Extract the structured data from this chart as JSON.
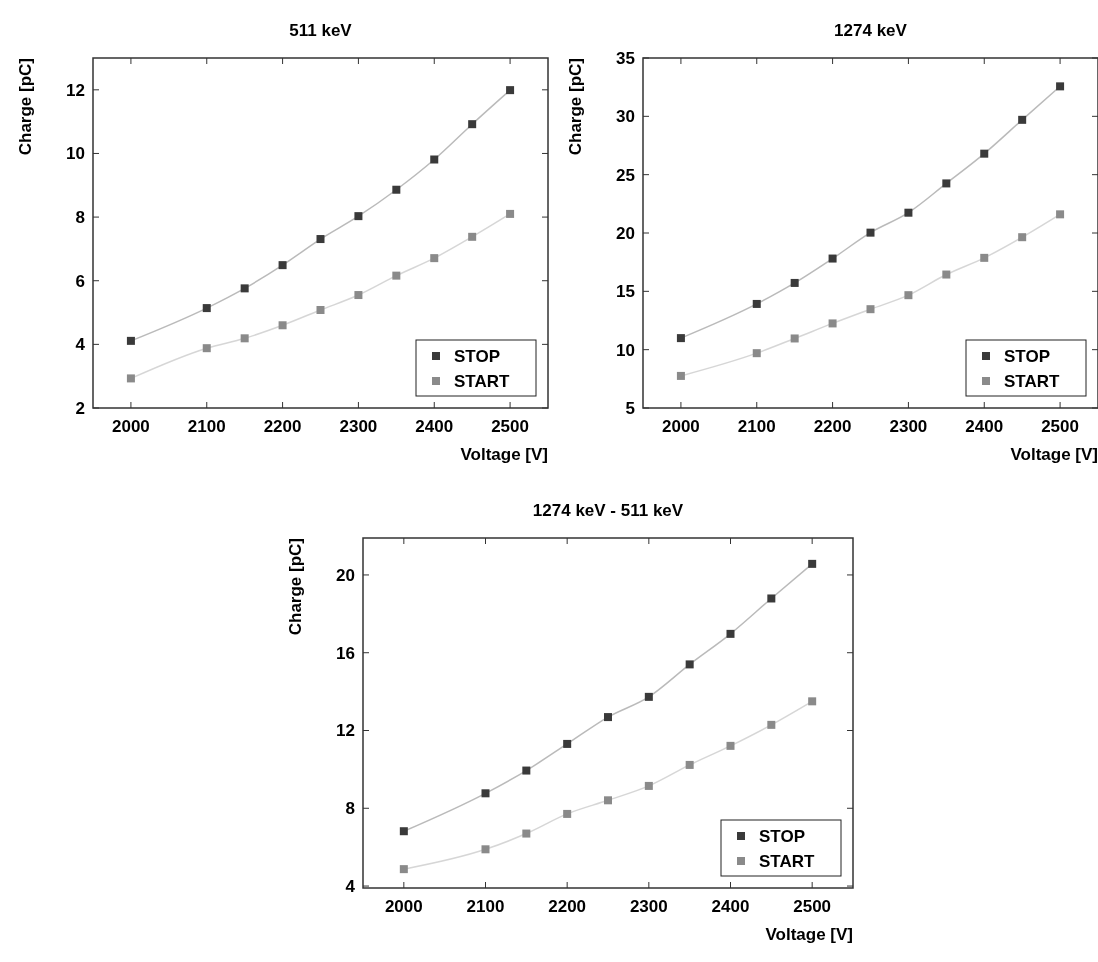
{
  "chart_data": [
    {
      "type": "line",
      "title": "511 keV",
      "xlabel": "Voltage [V]",
      "ylabel": "Charge [pC]",
      "x": [
        2000,
        2100,
        2150,
        2200,
        2250,
        2300,
        2350,
        2400,
        2450,
        2500
      ],
      "xlim": [
        1950,
        2550
      ],
      "xticks": [
        2000,
        2100,
        2200,
        2300,
        2400,
        2500
      ],
      "ylim": [
        2,
        13
      ],
      "yticks": [
        2,
        4,
        6,
        8,
        10,
        12
      ],
      "marker": "square",
      "legend": "bottom right",
      "grid": false,
      "series": [
        {
          "name": "STOP",
          "color": "#3a3a3a",
          "values": [
            4.11,
            5.14,
            5.76,
            6.49,
            7.31,
            8.03,
            8.86,
            9.81,
            10.92,
            11.99
          ]
        },
        {
          "name": "START",
          "color": "#8a8a8a",
          "values": [
            2.93,
            3.88,
            4.19,
            4.6,
            5.08,
            5.55,
            6.16,
            6.71,
            7.38,
            8.1
          ]
        }
      ]
    },
    {
      "type": "line",
      "title": "1274 keV",
      "xlabel": "Voltage [V]",
      "ylabel": "Charge [pC]",
      "x": [
        2000,
        2100,
        2150,
        2200,
        2250,
        2300,
        2350,
        2400,
        2450,
        2500
      ],
      "xlim": [
        1950,
        2550
      ],
      "xticks": [
        2000,
        2100,
        2200,
        2300,
        2400,
        2500
      ],
      "ylim": [
        5,
        35
      ],
      "yticks": [
        5,
        10,
        15,
        20,
        25,
        30,
        35
      ],
      "marker": "square",
      "legend": "bottom right",
      "grid": false,
      "series": [
        {
          "name": "STOP",
          "color": "#3a3a3a",
          "values": [
            10.99,
            13.92,
            15.72,
            17.81,
            20.03,
            21.74,
            24.25,
            26.8,
            29.7,
            32.57
          ]
        },
        {
          "name": "START",
          "color": "#8a8a8a",
          "values": [
            7.75,
            9.7,
            10.96,
            12.25,
            13.47,
            14.67,
            16.44,
            17.87,
            19.64,
            21.6
          ]
        }
      ]
    },
    {
      "type": "line",
      "title": "1274 keV - 511 keV",
      "xlabel": "Voltage [V]",
      "ylabel": "Charge [pC]",
      "x": [
        2000,
        2100,
        2150,
        2200,
        2250,
        2300,
        2350,
        2400,
        2450,
        2500
      ],
      "xlim": [
        1950,
        2550
      ],
      "xticks": [
        2000,
        2100,
        2200,
        2300,
        2400,
        2500
      ],
      "ylim": [
        3.9,
        21.9
      ],
      "yticks": [
        4,
        8,
        12,
        16,
        20
      ],
      "marker": "square",
      "legend": "bottom right",
      "grid": false,
      "series": [
        {
          "name": "STOP",
          "color": "#3a3a3a",
          "values": [
            6.82,
            8.77,
            9.94,
            11.31,
            12.69,
            13.73,
            15.4,
            16.97,
            18.79,
            20.57
          ]
        },
        {
          "name": "START",
          "color": "#8a8a8a",
          "values": [
            4.87,
            5.89,
            6.7,
            7.71,
            8.41,
            9.15,
            10.23,
            11.21,
            12.29,
            13.5
          ]
        }
      ]
    }
  ]
}
